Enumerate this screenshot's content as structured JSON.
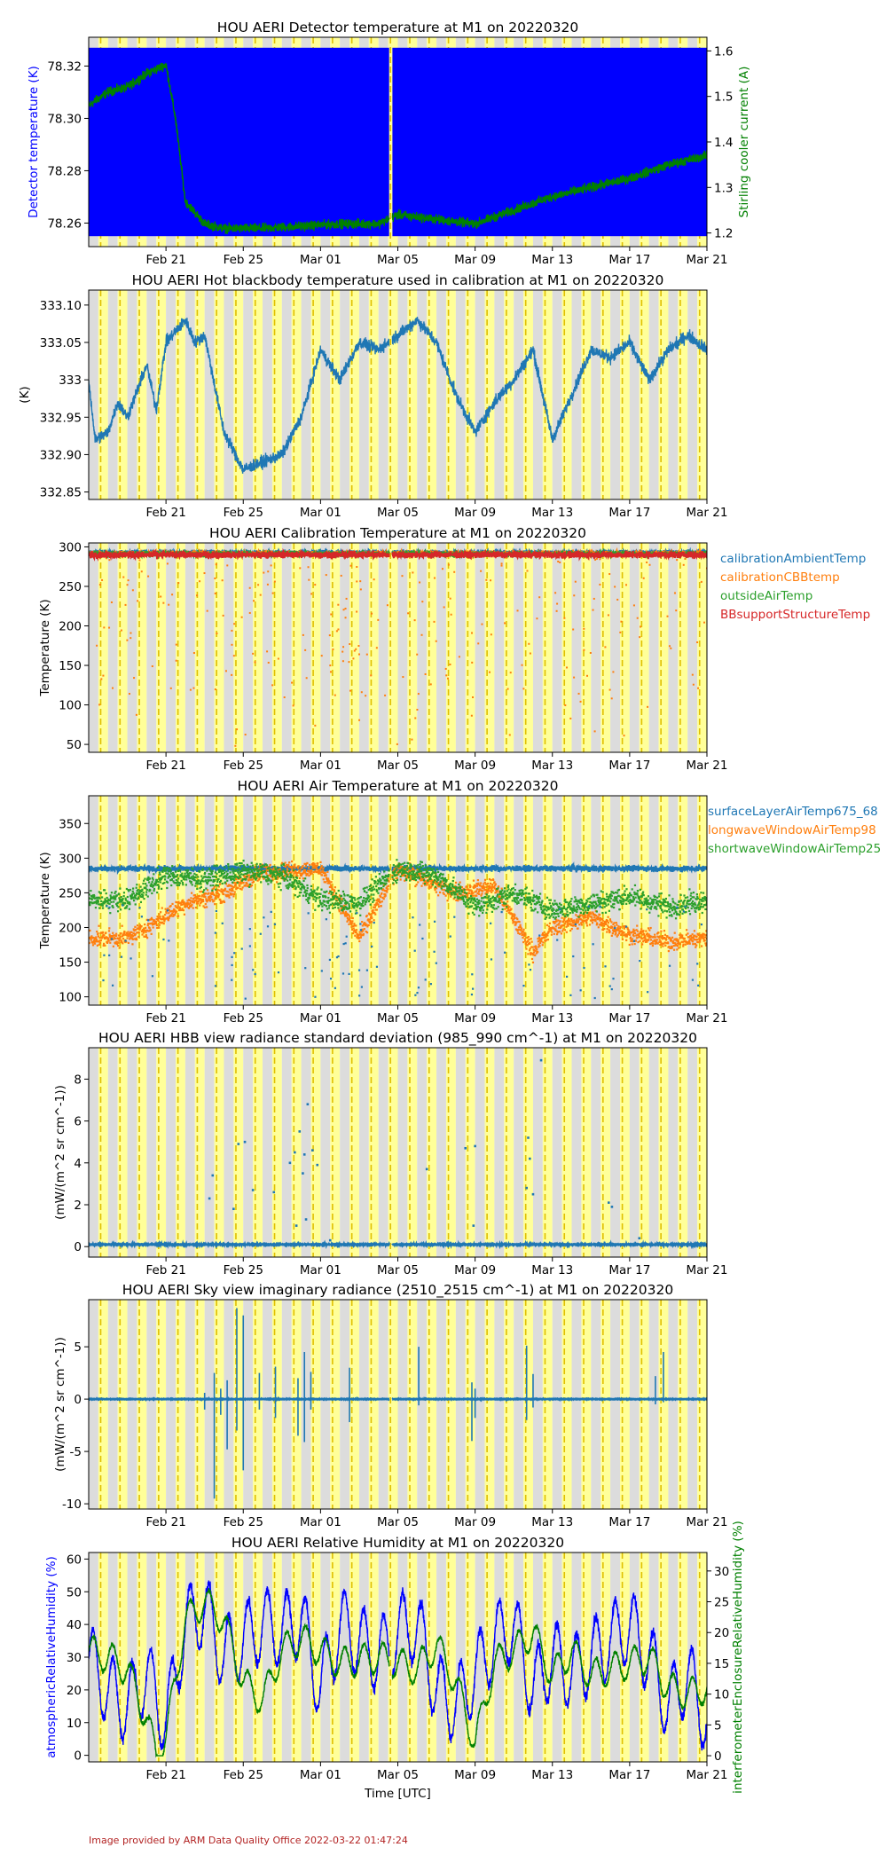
{
  "footer": {
    "credit": "Image provided by ARM Data Quality Office 2022-03-22 01:47:24",
    "color": "#b22222"
  },
  "time_axis": {
    "label": "Time [UTC]",
    "range": [
      "2022-02-17",
      "2022-03-21"
    ],
    "ticks": [
      {
        "date": "2022-02-21",
        "label": "Feb 21"
      },
      {
        "date": "2022-02-25",
        "label": "Feb 25"
      },
      {
        "date": "2022-03-01",
        "label": "Mar 01"
      },
      {
        "date": "2022-03-05",
        "label": "Mar 05"
      },
      {
        "date": "2022-03-09",
        "label": "Mar 09"
      },
      {
        "date": "2022-03-13",
        "label": "Mar 13"
      },
      {
        "date": "2022-03-17",
        "label": "Mar 17"
      },
      {
        "date": "2022-03-21",
        "label": "Mar 21"
      }
    ]
  },
  "day_night_shading": {
    "night": "#dcdcdc",
    "day": "#ffff99",
    "dashed_line": "#e0c000",
    "data_gap": "2022-03-04"
  },
  "chart_data": [
    {
      "type": "line",
      "title": "HOU AERI Detector temperature at M1 on 20220320",
      "ylabel": "Detector temperature (K)",
      "ylabel_color": "#0000ff",
      "ylim": [
        78.251,
        78.331
      ],
      "yticks": [
        78.26,
        78.28,
        78.3,
        78.32
      ],
      "y2label": "Stirling cooler current (A)",
      "y2label_color": "#008000",
      "y2lim": [
        1.17,
        1.63
      ],
      "y2ticks": [
        1.2,
        1.3,
        1.4,
        1.5,
        1.6
      ],
      "series": [
        {
          "axis": "left",
          "color": "#0000ff",
          "band": [
            78.255,
            78.327
          ]
        },
        {
          "axis": "right",
          "color": "#008000",
          "x": [
            "2022-02-17",
            "2022-02-18",
            "2022-02-19",
            "2022-02-20",
            "2022-02-21",
            "2022-02-21T12:00",
            "2022-02-22",
            "2022-02-23",
            "2022-02-24",
            "2022-02-26",
            "2022-02-28",
            "2022-03-02",
            "2022-03-04",
            "2022-03-05",
            "2022-03-07",
            "2022-03-09",
            "2022-03-11",
            "2022-03-13",
            "2022-03-15",
            "2022-03-17",
            "2022-03-19",
            "2022-03-21"
          ],
          "values": [
            1.48,
            1.51,
            1.52,
            1.55,
            1.57,
            1.45,
            1.27,
            1.22,
            1.21,
            1.21,
            1.215,
            1.22,
            1.22,
            1.24,
            1.23,
            1.22,
            1.25,
            1.28,
            1.3,
            1.32,
            1.35,
            1.37
          ],
          "noise": 0.015
        }
      ]
    },
    {
      "type": "line",
      "title": "HOU AERI Hot blackbody temperature used in calibration at M1 on 20220320",
      "ylabel": "(K)",
      "ylim": [
        332.84,
        333.12
      ],
      "yticks": [
        332.85,
        332.9,
        332.95,
        333.0,
        333.05,
        333.1
      ],
      "series": [
        {
          "color": "#1f77b4",
          "x": [
            "2022-02-17",
            "2022-02-17T08:00",
            "2022-02-18",
            "2022-02-18T12:00",
            "2022-02-19",
            "2022-02-20",
            "2022-02-20T12:00",
            "2022-02-21",
            "2022-02-22",
            "2022-02-22T12:00",
            "2022-02-23",
            "2022-02-24",
            "2022-02-25",
            "2022-02-26",
            "2022-02-27",
            "2022-02-28",
            "2022-03-01",
            "2022-03-02",
            "2022-03-03",
            "2022-03-04",
            "2022-03-05",
            "2022-03-06",
            "2022-03-07",
            "2022-03-08",
            "2022-03-09",
            "2022-03-10",
            "2022-03-11",
            "2022-03-12",
            "2022-03-13",
            "2022-03-14",
            "2022-03-15",
            "2022-03-16",
            "2022-03-17",
            "2022-03-18",
            "2022-03-19",
            "2022-03-20",
            "2022-03-21"
          ],
          "values": [
            333.0,
            332.92,
            332.93,
            332.97,
            332.95,
            333.02,
            332.96,
            333.05,
            333.08,
            333.05,
            333.06,
            332.93,
            332.88,
            332.89,
            332.9,
            332.95,
            333.04,
            333.0,
            333.05,
            333.04,
            333.06,
            333.08,
            333.05,
            332.98,
            332.93,
            332.97,
            333.0,
            333.04,
            332.92,
            332.98,
            333.04,
            333.03,
            333.05,
            333.0,
            333.04,
            333.06,
            333.04
          ],
          "noise": 0.012
        }
      ]
    },
    {
      "type": "scatter",
      "title": "HOU AERI Calibration Temperature at M1 on 20220320",
      "ylabel": "Temperature (K)",
      "ylim": [
        40,
        305
      ],
      "yticks": [
        50,
        100,
        150,
        200,
        250,
        300
      ],
      "legend": {
        "placement": "right",
        "entries": [
          {
            "name": "calibrationAmbientTemp",
            "color": "#1f77b4"
          },
          {
            "name": "calibrationCBBtemp",
            "color": "#ff7f0e"
          },
          {
            "name": "outsideAirTemp",
            "color": "#2ca02c"
          },
          {
            "name": "BBsupportStructureTemp",
            "color": "#d62728"
          }
        ]
      },
      "series": [
        {
          "name": "calibrationAmbientTemp",
          "color": "#1f77b4",
          "level": 293,
          "noise": 4
        },
        {
          "name": "calibrationCBBtemp",
          "color": "#ff7f0e",
          "level": 292,
          "noise": 4,
          "outlier_range": [
            40,
            290
          ]
        },
        {
          "name": "outsideAirTemp",
          "color": "#2ca02c",
          "level": 291,
          "noise": 5
        },
        {
          "name": "BBsupportStructureTemp",
          "color": "#d62728",
          "level": 290,
          "noise": 6
        }
      ]
    },
    {
      "type": "scatter",
      "title": "HOU AERI Air Temperature at M1 on 20220320",
      "ylabel": "Temperature (K)",
      "ylim": [
        88,
        390
      ],
      "yticks": [
        100,
        150,
        200,
        250,
        300,
        350
      ],
      "legend": {
        "placement": "right",
        "entries": [
          {
            "name": "surfaceLayerAirTemp675_68",
            "color": "#1f77b4"
          },
          {
            "name": "longwaveWindowAirTemp98",
            "color": "#ff7f0e"
          },
          {
            "name": "shortwaveWindowAirTemp25",
            "color": "#2ca02c"
          }
        ]
      },
      "series": [
        {
          "name": "surfaceLayerAirTemp675_68",
          "color": "#1f77b4",
          "level": 285,
          "noise": 6
        },
        {
          "name": "longwaveWindowAirTemp98",
          "color": "#ff7f0e",
          "x": [
            "2022-02-17",
            "2022-02-19",
            "2022-02-20",
            "2022-02-22",
            "2022-02-24",
            "2022-02-26",
            "2022-03-01",
            "2022-03-03",
            "2022-03-05",
            "2022-03-08",
            "2022-03-10",
            "2022-03-12",
            "2022-03-13",
            "2022-03-15",
            "2022-03-17",
            "2022-03-19",
            "2022-03-21"
          ],
          "values": [
            185,
            185,
            200,
            235,
            250,
            280,
            285,
            185,
            285,
            250,
            260,
            165,
            200,
            215,
            190,
            180,
            185
          ],
          "noise": 18
        },
        {
          "name": "shortwaveWindowAirTemp25",
          "color": "#2ca02c",
          "x": [
            "2022-02-17",
            "2022-02-19",
            "2022-02-21",
            "2022-02-23",
            "2022-02-25",
            "2022-02-27",
            "2022-03-01",
            "2022-03-03",
            "2022-03-05",
            "2022-03-07",
            "2022-03-09",
            "2022-03-11",
            "2022-03-13",
            "2022-03-15",
            "2022-03-17",
            "2022-03-19",
            "2022-03-21"
          ],
          "values": [
            240,
            240,
            275,
            270,
            280,
            275,
            240,
            235,
            285,
            275,
            230,
            250,
            225,
            235,
            245,
            230,
            240
          ],
          "noise": 22
        }
      ]
    },
    {
      "type": "scatter",
      "title": "HOU AERI HBB view radiance standard deviation (985_990 cm^-1) at M1 on 20220320",
      "ylabel": "(mW/(m^2 sr cm^-1))",
      "ylim": [
        -0.5,
        9.5
      ],
      "yticks": [
        0,
        2,
        4,
        6,
        8
      ],
      "series": [
        {
          "color": "#1f77b4",
          "level": 0.1,
          "outliers": [
            {
              "x": "2022-02-23T10:00",
              "y": 3.4
            },
            {
              "x": "2022-02-23T06:00",
              "y": 2.3
            },
            {
              "x": "2022-02-24T18:00",
              "y": 4.9
            },
            {
              "x": "2022-02-25T02:00",
              "y": 5.0
            },
            {
              "x": "2022-02-25T12:00",
              "y": 2.7
            },
            {
              "x": "2022-02-24T12:00",
              "y": 1.8
            },
            {
              "x": "2022-02-26T14:00",
              "y": 2.6
            },
            {
              "x": "2022-02-27T10:00",
              "y": 4.0
            },
            {
              "x": "2022-02-27T16:00",
              "y": 4.5
            },
            {
              "x": "2022-02-27T22:00",
              "y": 5.5
            },
            {
              "x": "2022-02-28T08:00",
              "y": 6.8
            },
            {
              "x": "2022-02-28T04:00",
              "y": 4.4
            },
            {
              "x": "2022-02-28T14:00",
              "y": 4.6
            },
            {
              "x": "2022-02-28T20:00",
              "y": 3.9
            },
            {
              "x": "2022-02-28T02:00",
              "y": 3.5
            },
            {
              "x": "2022-02-27T18:00",
              "y": 1.0
            },
            {
              "x": "2022-02-28T06:00",
              "y": 1.3
            },
            {
              "x": "2022-03-06T12:00",
              "y": 3.7
            },
            {
              "x": "2022-03-08T12:00",
              "y": 4.7
            },
            {
              "x": "2022-03-09T00:00",
              "y": 4.8
            },
            {
              "x": "2022-03-08T22:00",
              "y": 1.0
            },
            {
              "x": "2022-03-11T18:00",
              "y": 5.2
            },
            {
              "x": "2022-03-11T20:00",
              "y": 4.2
            },
            {
              "x": "2022-03-11T16:00",
              "y": 2.8
            },
            {
              "x": "2022-03-12T00:00",
              "y": 2.5
            },
            {
              "x": "2022-03-12T10:00",
              "y": 8.9
            },
            {
              "x": "2022-03-15T22:00",
              "y": 2.1
            },
            {
              "x": "2022-03-16T02:00",
              "y": 1.9
            },
            {
              "x": "2022-03-17T12:00",
              "y": 0.4
            },
            {
              "x": "2022-03-01T12:00",
              "y": 0.3
            }
          ]
        }
      ]
    },
    {
      "type": "line",
      "title": "HOU AERI Sky view imaginary radiance (2510_2515 cm^-1) at M1 on 20220320",
      "ylabel": "(mW/(m^2 sr cm^-1))",
      "ylim": [
        -10.5,
        9.5
      ],
      "yticks": [
        -10,
        -5,
        0,
        5
      ],
      "series": [
        {
          "color": "#1f77b4",
          "level": 0,
          "spikes": [
            {
              "x": "2022-02-23T12:00",
              "lo": -9.5,
              "hi": 2.5
            },
            {
              "x": "2022-02-23T00:00",
              "lo": -1.0,
              "hi": 0.6
            },
            {
              "x": "2022-02-23T20:00",
              "lo": -1.5,
              "hi": 1.0
            },
            {
              "x": "2022-02-24T04:00",
              "lo": -4.8,
              "hi": 1.8
            },
            {
              "x": "2022-02-24T16:00",
              "lo": -3.0,
              "hi": 8.7
            },
            {
              "x": "2022-02-25T00:00",
              "lo": -6.8,
              "hi": 8.0
            },
            {
              "x": "2022-02-25T20:00",
              "lo": -1.0,
              "hi": 2.5
            },
            {
              "x": "2022-02-26T16:00",
              "lo": -1.8,
              "hi": 3.1
            },
            {
              "x": "2022-02-27T20:00",
              "lo": -3.5,
              "hi": 2.0
            },
            {
              "x": "2022-02-28T04:00",
              "lo": -4.1,
              "hi": 4.5
            },
            {
              "x": "2022-02-28T12:00",
              "lo": -1.0,
              "hi": 2.6
            },
            {
              "x": "2022-03-02T12:00",
              "lo": -2.2,
              "hi": 3.0
            },
            {
              "x": "2022-03-06T02:00",
              "lo": -0.6,
              "hi": 5.0
            },
            {
              "x": "2022-03-08T20:00",
              "lo": -4.0,
              "hi": 1.6
            },
            {
              "x": "2022-03-09T00:00",
              "lo": -1.8,
              "hi": 1.0
            },
            {
              "x": "2022-03-11T16:00",
              "lo": -2.0,
              "hi": 5.1
            },
            {
              "x": "2022-03-12T00:00",
              "lo": -0.8,
              "hi": 2.4
            },
            {
              "x": "2022-03-18T08:00",
              "lo": -0.5,
              "hi": 2.2
            },
            {
              "x": "2022-03-18T18:00",
              "lo": -0.3,
              "hi": 4.5
            }
          ]
        }
      ]
    },
    {
      "type": "line",
      "title": "HOU AERI Relative Humidity at M1 on 20220320",
      "ylabel": "atmosphericRelativeHumidity (%)",
      "ylabel_color": "#0000ff",
      "ylim": [
        -2,
        62
      ],
      "yticks": [
        0,
        10,
        20,
        30,
        40,
        50,
        60
      ],
      "y2label": "interferometerEnclosureRelativeHumidity (%)",
      "y2label_color": "#008000",
      "y2lim": [
        -1,
        33
      ],
      "y2ticks": [
        0,
        5,
        10,
        15,
        20,
        25,
        30
      ],
      "xlabel": "Time [UTC]",
      "series": [
        {
          "name": "atmosphericRelativeHumidity",
          "axis": "left",
          "color": "#0000ff",
          "x": [
            "2022-02-17",
            "2022-02-18",
            "2022-02-19",
            "2022-02-20",
            "2022-02-21",
            "2022-02-22",
            "2022-02-23",
            "2022-02-24",
            "2022-02-25",
            "2022-02-26",
            "2022-02-27",
            "2022-02-28",
            "2022-03-01",
            "2022-03-02",
            "2022-03-03",
            "2022-03-04",
            "2022-03-05",
            "2022-03-06",
            "2022-03-07",
            "2022-03-08",
            "2022-03-09",
            "2022-03-10",
            "2022-03-11",
            "2022-03-12",
            "2022-03-13",
            "2022-03-14",
            "2022-03-15",
            "2022-03-16",
            "2022-03-17",
            "2022-03-18",
            "2022-03-19",
            "2022-03-20",
            "2022-03-21"
          ],
          "values": [
            30,
            20,
            15,
            25,
            10,
            40,
            45,
            30,
            35,
            40,
            38,
            42,
            20,
            40,
            35,
            30,
            38,
            40,
            20,
            15,
            25,
            35,
            40,
            20,
            30,
            25,
            30,
            35,
            40,
            30,
            15,
            25,
            10
          ],
          "swing": 22
        },
        {
          "name": "interferometerEnclosureRelativeHumidity",
          "axis": "right",
          "color": "#008000",
          "x": [
            "2022-02-17",
            "2022-02-18",
            "2022-02-19",
            "2022-02-20",
            "2022-02-20T12:00",
            "2022-02-21",
            "2022-02-22",
            "2022-02-23",
            "2022-02-24",
            "2022-02-25",
            "2022-02-26",
            "2022-02-27",
            "2022-02-28",
            "2022-03-01",
            "2022-03-02",
            "2022-03-04",
            "2022-03-05",
            "2022-03-06",
            "2022-03-07",
            "2022-03-08",
            "2022-03-09",
            "2022-03-10",
            "2022-03-11",
            "2022-03-12",
            "2022-03-13",
            "2022-03-14",
            "2022-03-15",
            "2022-03-16",
            "2022-03-17",
            "2022-03-18",
            "2022-03-19",
            "2022-03-20",
            "2022-03-21"
          ],
          "values": [
            17,
            16,
            14,
            6,
            0,
            3,
            22,
            25,
            22,
            12,
            9,
            17,
            19,
            17,
            15,
            16,
            15,
            14,
            18,
            12,
            2,
            15,
            17,
            20,
            13,
            17,
            13,
            14,
            15,
            16,
            11,
            10,
            11
          ],
          "swing": 5
        }
      ]
    }
  ]
}
